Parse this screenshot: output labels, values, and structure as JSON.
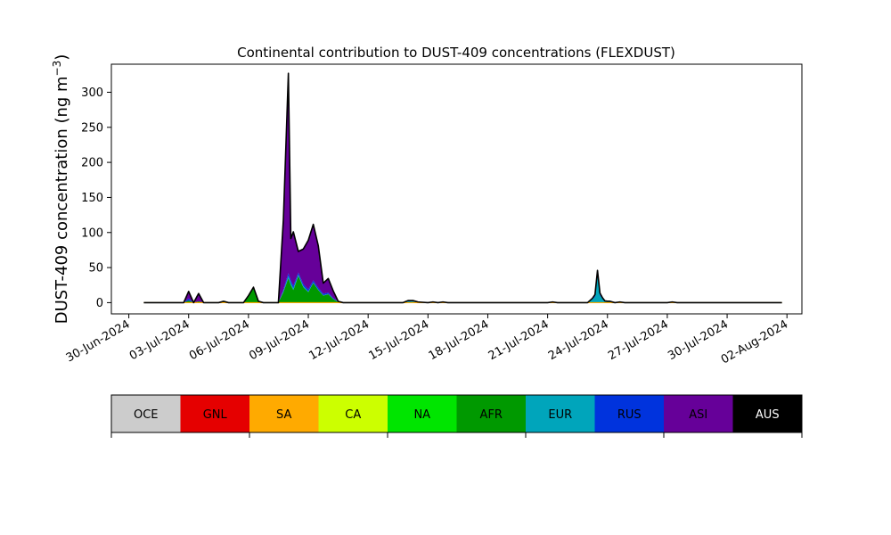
{
  "chart_data": {
    "type": "area",
    "title": "Continental contribution to DUST-409 concentrations (FLEXDUST)",
    "ylabel": "DUST-409 concentration (ng m",
    "ylabel_sup": "−3",
    "ylabel_close": ")",
    "xlabel": "",
    "ylim": [
      -16,
      340
    ],
    "yticks": [
      0,
      50,
      100,
      150,
      200,
      250,
      300
    ],
    "xlim": [
      "2024-06-29T03:00",
      "2024-08-02T18:00"
    ],
    "xticks": [
      "2024-06-30",
      "2024-07-03",
      "2024-07-06",
      "2024-07-09",
      "2024-07-12",
      "2024-07-15",
      "2024-07-18",
      "2024-07-21",
      "2024-07-24",
      "2024-07-27",
      "2024-07-30",
      "2024-08-02"
    ],
    "xtick_labels": [
      "30-Jun-2024",
      "03-Jul-2024",
      "06-Jul-2024",
      "09-Jul-2024",
      "12-Jul-2024",
      "15-Jul-2024",
      "18-Jul-2024",
      "21-Jul-2024",
      "24-Jul-2024",
      "27-Jul-2024",
      "30-Jul-2024",
      "02-Aug-2024"
    ],
    "grid": false,
    "legend": {
      "placement": "bottom colorbar",
      "entries": [
        {
          "label": "OCE",
          "color": "#cccccc",
          "text_color": "#000000"
        },
        {
          "label": "GNL",
          "color": "#e50000",
          "text_color": "#000000"
        },
        {
          "label": "SA",
          "color": "#ffaa00",
          "text_color": "#000000"
        },
        {
          "label": "CA",
          "color": "#ccff00",
          "text_color": "#000000"
        },
        {
          "label": "NA",
          "color": "#00e500",
          "text_color": "#000000"
        },
        {
          "label": "AFR",
          "color": "#009900",
          "text_color": "#000000"
        },
        {
          "label": "EUR",
          "color": "#00a5bb",
          "text_color": "#000000"
        },
        {
          "label": "RUS",
          "color": "#0033dd",
          "text_color": "#000000"
        },
        {
          "label": "ASI",
          "color": "#660099",
          "text_color": "#000000"
        },
        {
          "label": "AUS",
          "color": "#000000",
          "text_color": "#ffffff"
        }
      ]
    },
    "total_line_color": "#000000",
    "series": [
      {
        "name": "AFR",
        "color": "#009900",
        "points": [
          [
            "2024-06-30T18:00",
            0
          ],
          [
            "2024-07-02T18:00",
            0
          ],
          [
            "2024-07-03T00:00",
            3
          ],
          [
            "2024-07-03T06:00",
            0
          ],
          [
            "2024-07-03T12:00",
            2
          ],
          [
            "2024-07-03T18:00",
            0
          ],
          [
            "2024-07-04T12:00",
            0
          ],
          [
            "2024-07-04T18:00",
            2
          ],
          [
            "2024-07-05T00:00",
            0
          ],
          [
            "2024-07-05T18:00",
            0
          ],
          [
            "2024-07-06T00:00",
            10
          ],
          [
            "2024-07-06T06:00",
            22
          ],
          [
            "2024-07-06T12:00",
            2
          ],
          [
            "2024-07-06T18:00",
            0
          ],
          [
            "2024-07-07T12:00",
            0
          ],
          [
            "2024-07-07T18:00",
            15
          ],
          [
            "2024-07-08T00:00",
            35
          ],
          [
            "2024-07-08T03:00",
            25
          ],
          [
            "2024-07-08T06:00",
            18
          ],
          [
            "2024-07-08T12:00",
            38
          ],
          [
            "2024-07-08T18:00",
            22
          ],
          [
            "2024-07-09T00:00",
            15
          ],
          [
            "2024-07-09T06:00",
            28
          ],
          [
            "2024-07-09T12:00",
            18
          ],
          [
            "2024-07-09T18:00",
            10
          ],
          [
            "2024-07-10T00:00",
            12
          ],
          [
            "2024-07-10T06:00",
            5
          ],
          [
            "2024-07-10T12:00",
            1
          ],
          [
            "2024-07-10T18:00",
            0
          ],
          [
            "2024-07-11T06:00",
            0
          ],
          [
            "2024-07-14T00:00",
            0
          ],
          [
            "2024-07-14T06:00",
            1
          ],
          [
            "2024-07-14T12:00",
            0
          ],
          [
            "2024-07-15T12:00",
            0
          ],
          [
            "2024-07-15T18:00",
            1
          ],
          [
            "2024-07-16T00:00",
            0
          ],
          [
            "2024-07-24T00:00",
            0
          ],
          [
            "2024-08-01T18:00",
            0
          ]
        ]
      },
      {
        "name": "EUR",
        "color": "#00a5bb",
        "points": [
          [
            "2024-06-30T18:00",
            0
          ],
          [
            "2024-07-07T12:00",
            0
          ],
          [
            "2024-07-08T00:00",
            3
          ],
          [
            "2024-07-08T12:00",
            2
          ],
          [
            "2024-07-09T00:00",
            1
          ],
          [
            "2024-07-10T18:00",
            0
          ],
          [
            "2024-07-13T18:00",
            0
          ],
          [
            "2024-07-14T00:00",
            2
          ],
          [
            "2024-07-14T06:00",
            1
          ],
          [
            "2024-07-14T12:00",
            0
          ],
          [
            "2024-07-21T00:00",
            0
          ],
          [
            "2024-07-21T06:00",
            1
          ],
          [
            "2024-07-21T12:00",
            0
          ],
          [
            "2024-07-23T00:00",
            0
          ],
          [
            "2024-07-23T09:00",
            8
          ],
          [
            "2024-07-23T12:00",
            40
          ],
          [
            "2024-07-23T15:00",
            10
          ],
          [
            "2024-07-23T21:00",
            2
          ],
          [
            "2024-07-24T03:00",
            2
          ],
          [
            "2024-07-24T09:00",
            0
          ],
          [
            "2024-07-24T15:00",
            1
          ],
          [
            "2024-07-24T21:00",
            0
          ],
          [
            "2024-07-27T00:00",
            0
          ],
          [
            "2024-07-27T06:00",
            1
          ],
          [
            "2024-07-27T12:00",
            0
          ],
          [
            "2024-08-01T18:00",
            0
          ]
        ]
      },
      {
        "name": "RUS",
        "color": "#0033dd",
        "points": [
          [
            "2024-06-30T18:00",
            0
          ],
          [
            "2024-07-02T18:00",
            0
          ],
          [
            "2024-07-03T00:00",
            3
          ],
          [
            "2024-07-03T06:00",
            0
          ],
          [
            "2024-07-07T12:00",
            0
          ],
          [
            "2024-07-08T00:00",
            4
          ],
          [
            "2024-07-08T12:00",
            3
          ],
          [
            "2024-07-09T00:00",
            3
          ],
          [
            "2024-07-10T00:00",
            2
          ],
          [
            "2024-07-10T18:00",
            0
          ],
          [
            "2024-07-13T18:00",
            0
          ],
          [
            "2024-07-14T00:00",
            1
          ],
          [
            "2024-07-14T12:00",
            1
          ],
          [
            "2024-07-15T00:00",
            0
          ],
          [
            "2024-07-23T06:00",
            0
          ],
          [
            "2024-07-23T12:00",
            4
          ],
          [
            "2024-07-23T18:00",
            0
          ],
          [
            "2024-08-01T18:00",
            0
          ]
        ]
      },
      {
        "name": "ASI",
        "color": "#660099",
        "points": [
          [
            "2024-06-30T18:00",
            0
          ],
          [
            "2024-07-02T18:00",
            0
          ],
          [
            "2024-07-03T00:00",
            10
          ],
          [
            "2024-07-03T06:00",
            0
          ],
          [
            "2024-07-03T12:00",
            11
          ],
          [
            "2024-07-03T18:00",
            0
          ],
          [
            "2024-07-07T12:00",
            0
          ],
          [
            "2024-07-07T18:00",
            100
          ],
          [
            "2024-07-08T00:00",
            285
          ],
          [
            "2024-07-08T03:00",
            60
          ],
          [
            "2024-07-08T06:00",
            77
          ],
          [
            "2024-07-08T12:00",
            30
          ],
          [
            "2024-07-08T18:00",
            50
          ],
          [
            "2024-07-09T00:00",
            70
          ],
          [
            "2024-07-09T06:00",
            80
          ],
          [
            "2024-07-09T12:00",
            60
          ],
          [
            "2024-07-09T18:00",
            15
          ],
          [
            "2024-07-10T00:00",
            20
          ],
          [
            "2024-07-10T06:00",
            10
          ],
          [
            "2024-07-10T12:00",
            0
          ],
          [
            "2024-07-15T00:00",
            0
          ],
          [
            "2024-07-15T06:00",
            1
          ],
          [
            "2024-07-15T12:00",
            0
          ],
          [
            "2024-07-23T00:00",
            0
          ],
          [
            "2024-07-23T12:00",
            2
          ],
          [
            "2024-07-24T00:00",
            0
          ],
          [
            "2024-08-01T18:00",
            0
          ]
        ]
      }
    ]
  }
}
